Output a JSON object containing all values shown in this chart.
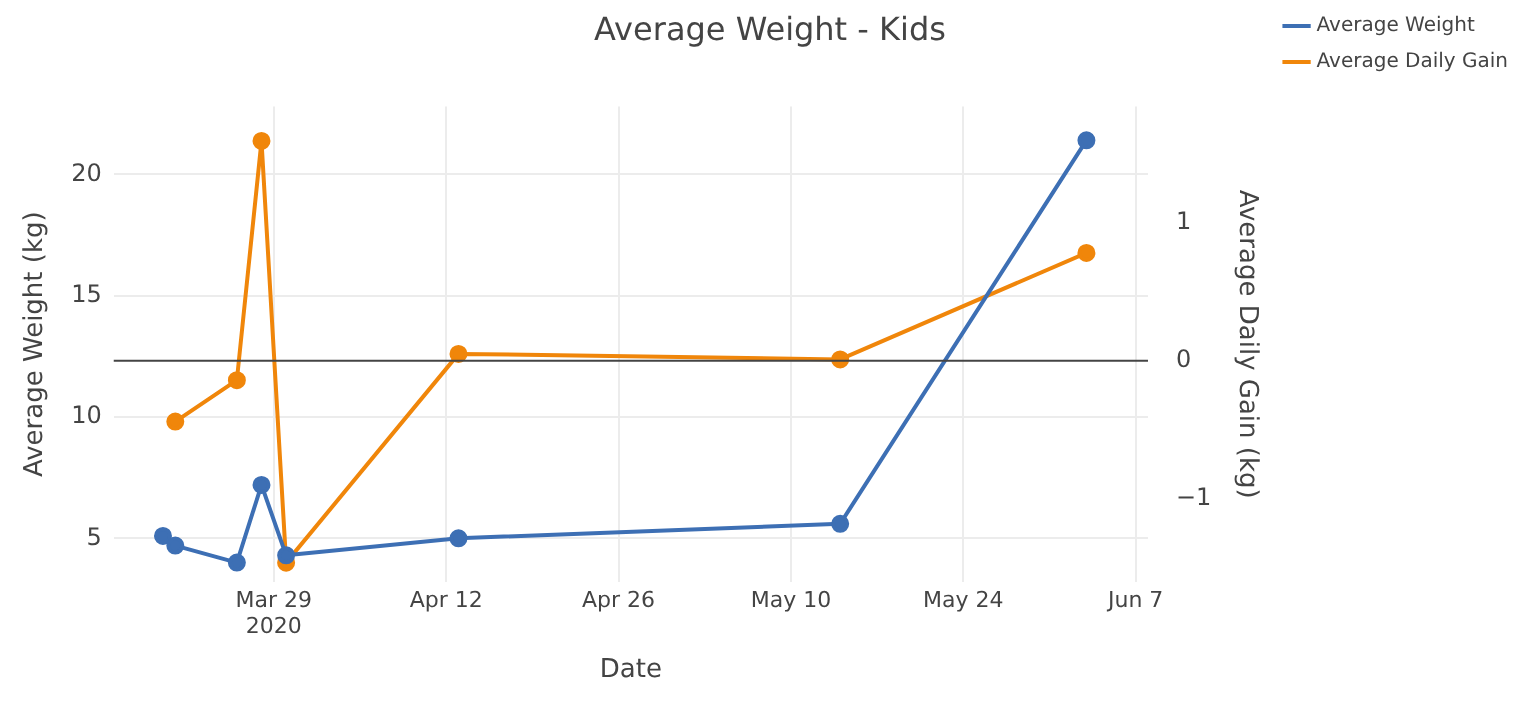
{
  "chart_data": {
    "type": "line",
    "title": "Average Weight - Kids",
    "xlabel": "Date",
    "ylabel": "Average Weight (kg)",
    "y2label": "Average Daily Gain (kg)",
    "x": [
      "2020-03-20",
      "2020-03-21",
      "2020-03-26",
      "2020-03-28",
      "2020-03-30",
      "2020-04-13",
      "2020-05-14",
      "2020-06-03"
    ],
    "series": [
      {
        "name": "Average Weight",
        "color": "#3d6fb4",
        "values": [
          5.1,
          4.7,
          4.0,
          7.2,
          4.3,
          5.0,
          5.6,
          21.4
        ]
      },
      {
        "name": "Average Daily Gain",
        "color": "#f0860a",
        "axis": "y2",
        "values": [
          null,
          -0.44,
          -0.14,
          1.59,
          -1.46,
          0.05,
          0.01,
          0.78
        ]
      }
    ],
    "xlim": [
      "2020-03-16",
      "2020-06-08"
    ],
    "xticks": [
      {
        "value": "2020-03-29",
        "label": "Mar 29\n2020"
      },
      {
        "value": "2020-04-12",
        "label": "Apr 12"
      },
      {
        "value": "2020-04-26",
        "label": "Apr 26"
      },
      {
        "value": "2020-05-10",
        "label": "May 10"
      },
      {
        "value": "2020-05-24",
        "label": "May 24"
      },
      {
        "value": "2020-06-07",
        "label": "Jun 7"
      }
    ],
    "ylim": [
      3.2,
      22.8
    ],
    "yticks": [
      5,
      10,
      15,
      20
    ],
    "y2lim": [
      -1.6,
      1.84
    ],
    "y2ticks": [
      {
        "value": -1,
        "label": "−1"
      },
      0,
      1
    ],
    "ref_lines": [
      {
        "axis": "y2",
        "value": 0,
        "color": "#444444"
      }
    ],
    "grid": true,
    "legend": "top right",
    "marker": "circle",
    "line_style": "solid"
  }
}
